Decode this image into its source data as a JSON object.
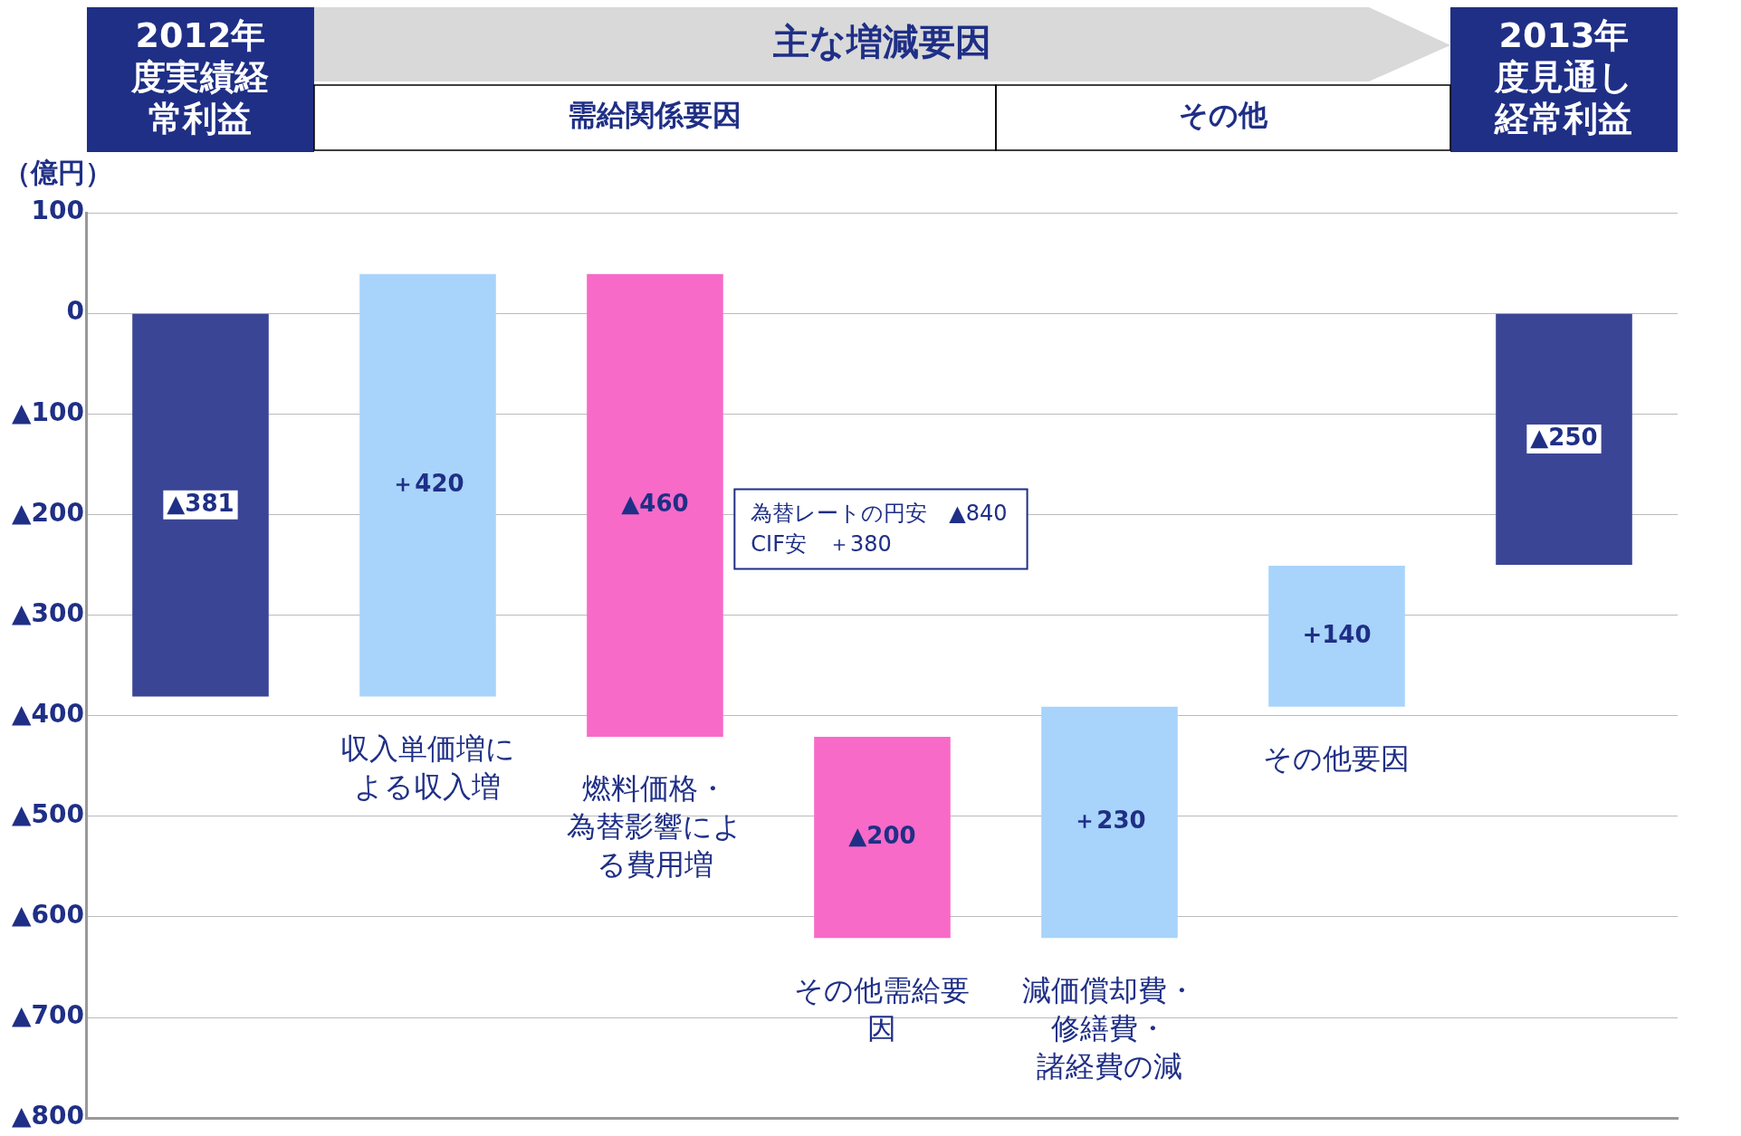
{
  "chart_data": {
    "type": "bar",
    "ylabel": "（億円）",
    "categories": [
      "2012年度実績経常利益",
      "収入単価増による収入増",
      "燃料価格・為替影響による費用増",
      "その他需給要因",
      "減価償却費・修繕費・諸経費の減",
      "その他要因",
      "2013年度見通し経常利益"
    ],
    "values": [
      -381,
      420,
      -460,
      -200,
      230,
      140,
      -250
    ],
    "base": [
      0,
      -381,
      39,
      -421,
      -621,
      -391,
      0
    ],
    "colors": [
      "#3a4596",
      "#a8d4fb",
      "#f76ac8",
      "#f76ac8",
      "#a8d4fb",
      "#a8d4fb",
      "#3a4596"
    ],
    "value_labels": [
      "▲381",
      "＋420",
      "▲460",
      "▲200",
      "＋230",
      "+140",
      "▲250"
    ],
    "annotations": [
      "主な増減要因",
      "需給関係要因",
      "その他",
      "為替レートの円安　▲840\nCIF安　＋380"
    ],
    "ylim": [
      -800,
      100
    ],
    "yticks": [
      100,
      0,
      {
        "value": -100,
        "label": "▲100"
      },
      {
        "value": -200,
        "label": "▲200"
      },
      {
        "value": -300,
        "label": "▲300"
      },
      {
        "value": -400,
        "label": "▲400"
      },
      {
        "value": -500,
        "label": "▲500"
      },
      {
        "value": -600,
        "label": "▲600"
      },
      {
        "value": -700,
        "label": "▲700"
      },
      {
        "value": -800,
        "label": "▲800"
      }
    ],
    "grid": "y",
    "tick_labels": "y",
    "legend": false
  }
}
